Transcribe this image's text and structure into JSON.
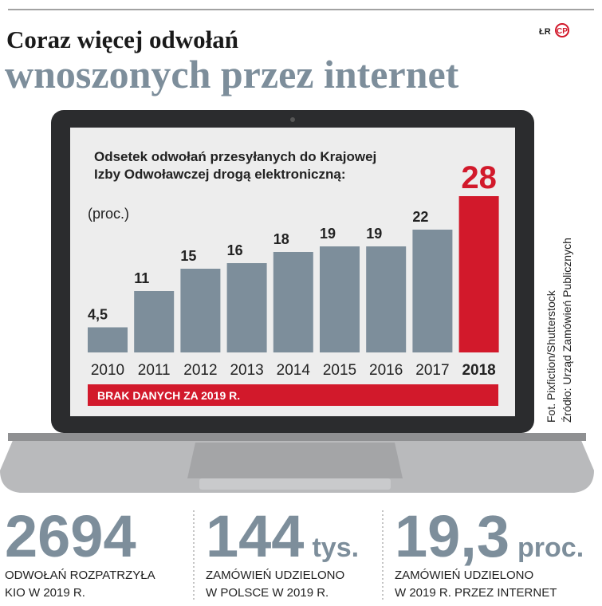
{
  "header": {
    "title_lines": [
      "Coraz więcej odwołań",
      "wnoszonych przez internet"
    ],
    "logo": [
      "ŁR",
      "CP"
    ]
  },
  "chart_data": {
    "type": "bar",
    "title_lines": [
      "Odsetek odwołań przesyłanych do Krajowej",
      "Izby Odwoławczej drogą elektroniczną:"
    ],
    "unit_label": "(proc.)",
    "categories": [
      "2010",
      "2011",
      "2012",
      "2013",
      "2014",
      "2015",
      "2016",
      "2017",
      "2018"
    ],
    "values": [
      4.5,
      11,
      15,
      16,
      18,
      19,
      19,
      22,
      28
    ],
    "value_labels": [
      "4,5",
      "11",
      "15",
      "16",
      "18",
      "19",
      "19",
      "22",
      "28"
    ],
    "colors": [
      "#7d8e9b",
      "#7d8e9b",
      "#7d8e9b",
      "#7d8e9b",
      "#7d8e9b",
      "#7d8e9b",
      "#7d8e9b",
      "#7d8e9b",
      "#d2192b"
    ],
    "note": "BRAK DANYCH ZA 2019 R."
  },
  "credits": [
    "Fot. Pixfiction/Shutterstock",
    "Źródło: Urząd Zamówień Publicznych"
  ],
  "stats": [
    {
      "value": "2694",
      "caption_lines": [
        "ODWOŁAŃ ROZPATRZYŁA",
        "KIO W 2019 R."
      ]
    },
    {
      "value": "144",
      "unit": "tys.",
      "caption_lines": [
        "ZAMÓWIEŃ UDZIELONO",
        "W POLSCE W 2019 R."
      ]
    },
    {
      "value": "19,3",
      "unit": "proc.",
      "caption_lines": [
        "ZAMÓWIEŃ UDZIELONO",
        "W 2019 R. PRZEZ INTERNET"
      ]
    }
  ]
}
